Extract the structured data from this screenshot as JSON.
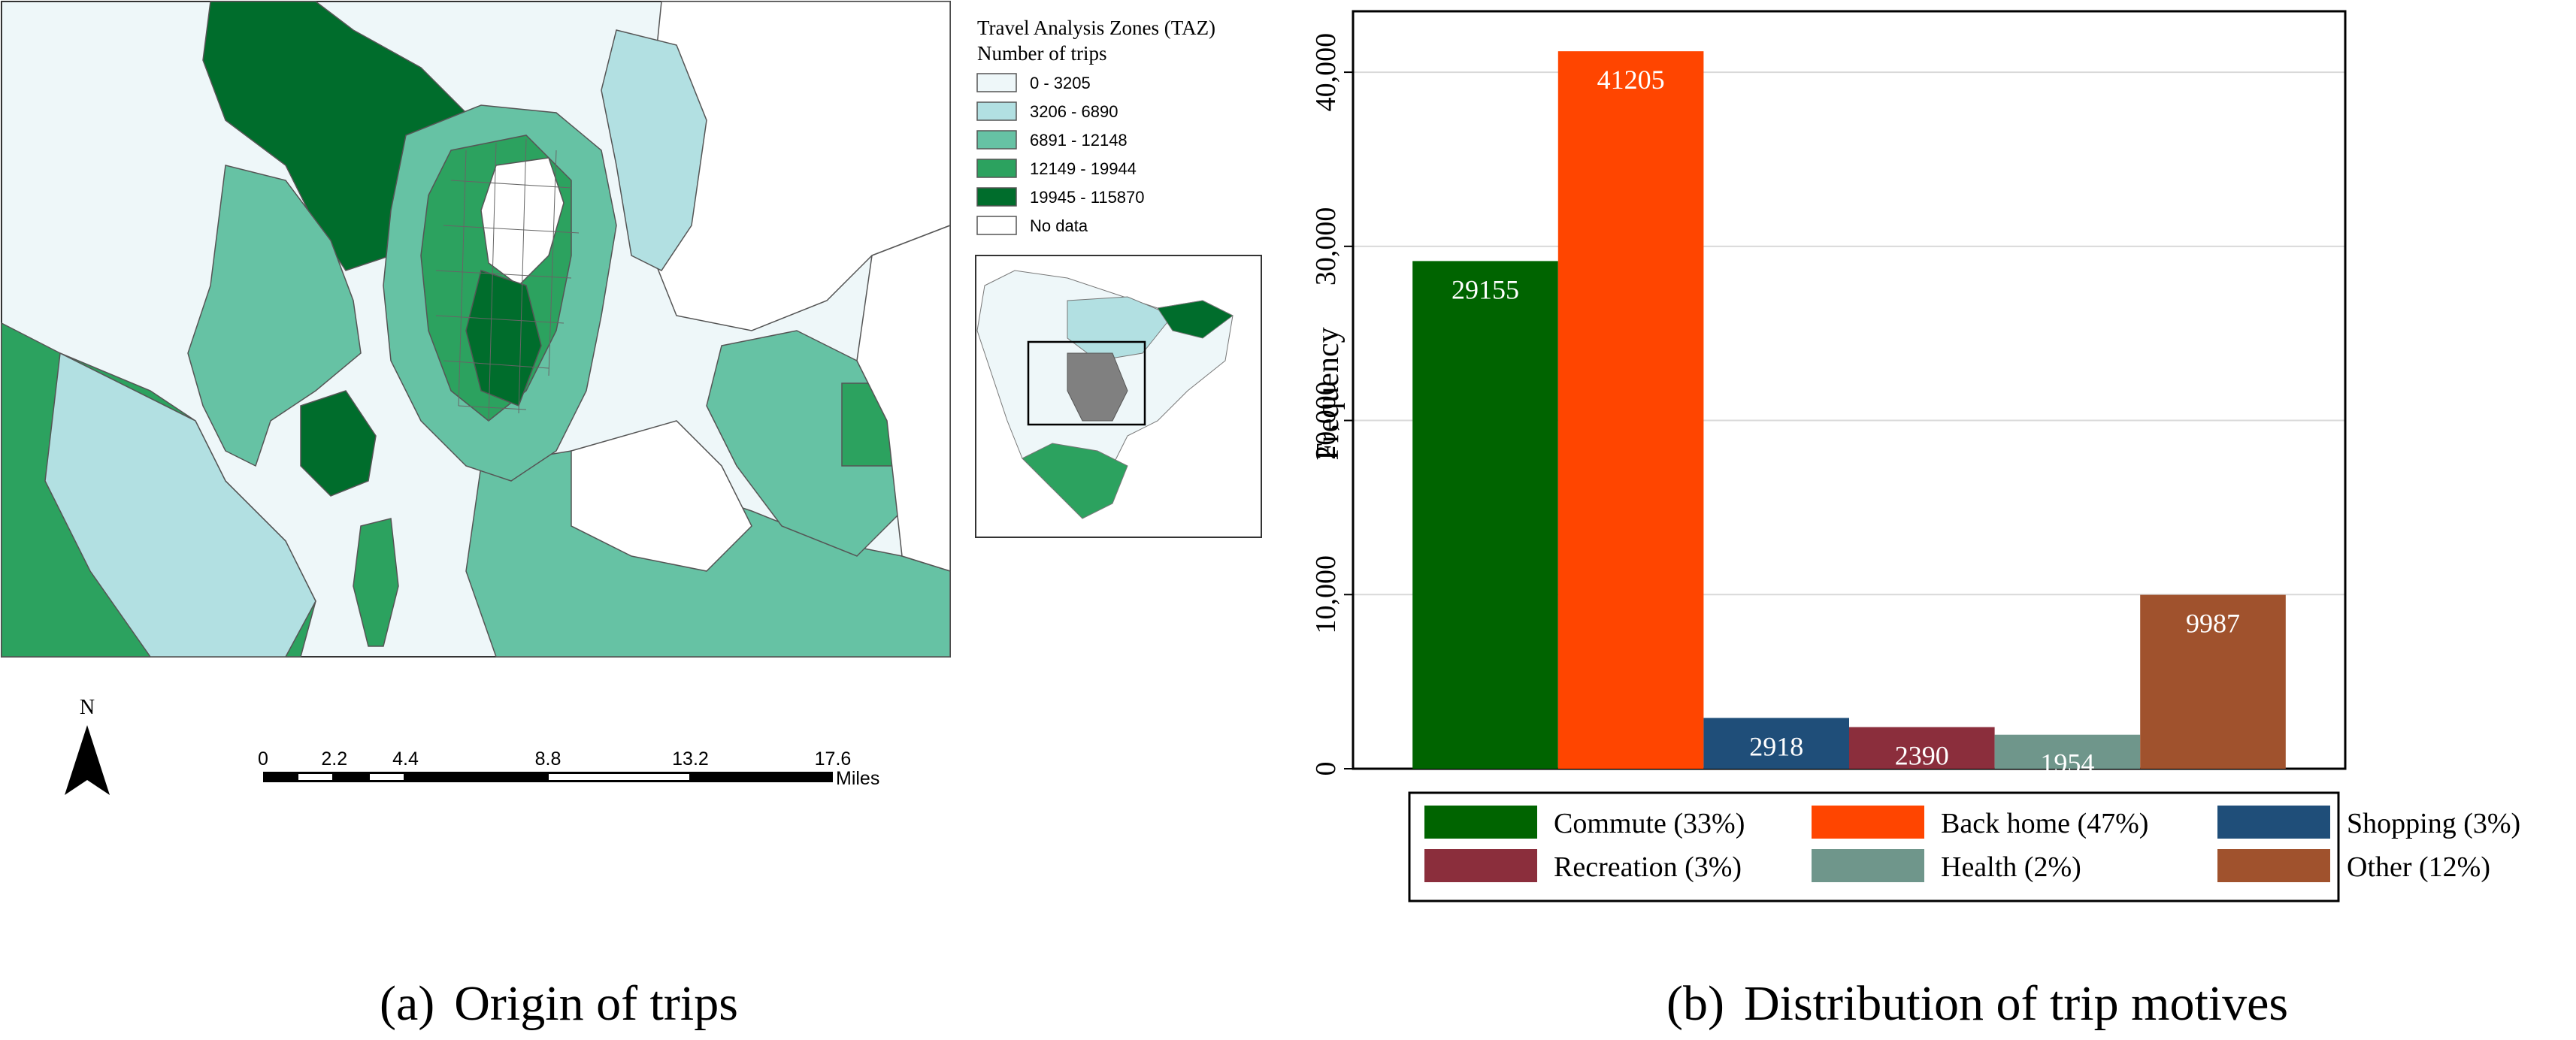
{
  "panels": {
    "a": {
      "label": "(a)",
      "caption": "Origin of trips",
      "legend": {
        "title": "Travel Analysis Zones (TAZ)",
        "subtitle": "Number of trips",
        "classes": [
          {
            "label": "0 - 3205",
            "color": "#eef7f9"
          },
          {
            "label": "3206 - 6890",
            "color": "#b2e0e2"
          },
          {
            "label": "6891 - 12148",
            "color": "#66c2a4"
          },
          {
            "label": "12149 - 19944",
            "color": "#2ca25f"
          },
          {
            "label": "19945 - 115870",
            "color": "#006d2c"
          },
          {
            "label": "No data",
            "color": "#ffffff"
          }
        ]
      },
      "north_label": "N",
      "scale_bar": {
        "ticks": [
          "0",
          "2.2",
          "4.4",
          "8.8",
          "13.2",
          "17.6"
        ],
        "unit": "Miles"
      }
    },
    "b": {
      "label": "(b)",
      "caption": "Distribution of trip motives"
    }
  },
  "chart_data": {
    "type": "bar",
    "title": "",
    "xlabel": "",
    "ylabel": "Frequency",
    "ylim": [
      0,
      43500
    ],
    "yticks": [
      0,
      10000,
      20000,
      30000,
      40000
    ],
    "ytick_labels": [
      "0",
      "10,000",
      "20,000",
      "30,000",
      "40,000"
    ],
    "grid": true,
    "legend_position": "bottom",
    "categories": [
      "Commute",
      "Back home",
      "Shopping",
      "Recreation",
      "Health",
      "Other"
    ],
    "values": [
      29155,
      41205,
      2918,
      2390,
      1954,
      9987
    ],
    "data_labels": [
      "29155",
      "41205",
      "2918",
      "2390",
      "1954",
      "9987"
    ],
    "legend_labels": [
      "Commute (33%)",
      "Back home (47%)",
      "Shopping (3%)",
      "Recreation (3%)",
      "Health (2%)",
      "Other (12%)"
    ],
    "colors": [
      "#006400",
      "#ff4500",
      "#1f4e79",
      "#8b2e3c",
      "#6f968b",
      "#a0522d"
    ],
    "label_color": "#ffffff"
  }
}
